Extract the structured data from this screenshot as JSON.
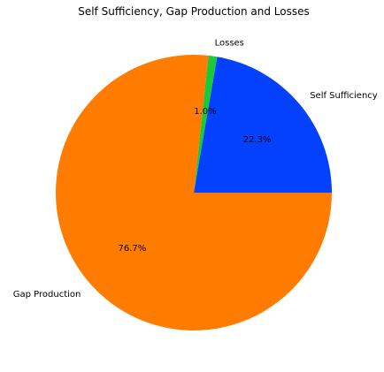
{
  "chart_data": {
    "type": "pie",
    "title": "Self Sufficiency, Gap Production and Losses",
    "slices": [
      {
        "label": "Self Sufficiency",
        "value": 22.3,
        "pct_label": "22.3%",
        "color": "#0341ff"
      },
      {
        "label": "Losses",
        "value": 1.0,
        "pct_label": "1.0%",
        "color": "#1ac938"
      },
      {
        "label": "Gap Production",
        "value": 76.7,
        "pct_label": "76.7%",
        "color": "#ff7c00"
      }
    ],
    "start_angle_deg": 0,
    "direction": "counterclockwise",
    "legend": "none"
  }
}
